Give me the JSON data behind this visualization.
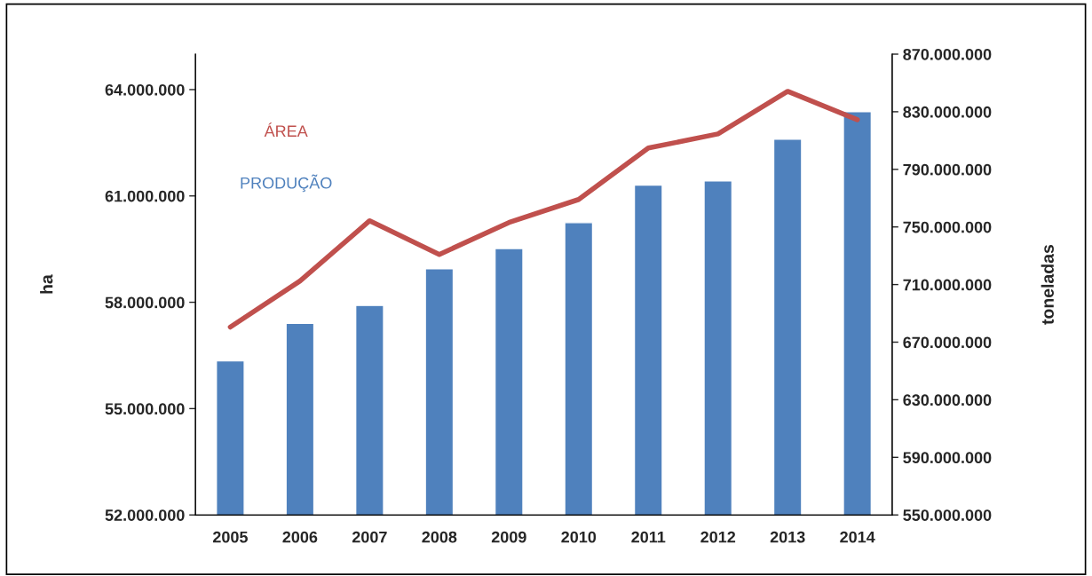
{
  "chart_data": {
    "type": "bar",
    "categories": [
      "2005",
      "2006",
      "2007",
      "2008",
      "2009",
      "2010",
      "2011",
      "2012",
      "2013",
      "2014"
    ],
    "series": [
      {
        "name": "PRODUÇÃO",
        "axis": "y2",
        "color": "#4f81bd",
        "values": [
          657000000,
          683000000,
          695500000,
          721000000,
          735000000,
          753000000,
          779000000,
          782000000,
          811000000,
          830000000
        ]
      },
      {
        "name": "ÁREA",
        "type": "line",
        "color": "#c0504d",
        "values": [
          57300000,
          58600000,
          60300000,
          59350000,
          60250000,
          60900000,
          62350000,
          62750000,
          63950000,
          63150000
        ]
      }
    ],
    "ylabel": "ha",
    "y2label": "toneladas",
    "ylim": [
      52000000,
      65000000
    ],
    "yticks": [
      {
        "value": 52000000,
        "label": "52.000.000"
      },
      {
        "value": 55000000,
        "label": "55.000.000"
      },
      {
        "value": 58000000,
        "label": "58.000.000"
      },
      {
        "value": 61000000,
        "label": "61.000.000"
      },
      {
        "value": 64000000,
        "label": "64.000.000"
      }
    ],
    "y2lim": [
      550000000,
      870000000
    ],
    "y2ticks": [
      {
        "value": 550000000,
        "label": "550.000.000"
      },
      {
        "value": 590000000,
        "label": "590.000.000"
      },
      {
        "value": 630000000,
        "label": "630.000.000"
      },
      {
        "value": 670000000,
        "label": "670.000.000"
      },
      {
        "value": 710000000,
        "label": "710.000.000"
      },
      {
        "value": 750000000,
        "label": "750.000.000"
      },
      {
        "value": 790000000,
        "label": "790.000.000"
      },
      {
        "value": 830000000,
        "label": "830.000.000"
      },
      {
        "value": 870000000,
        "label": "870.000.000"
      }
    ],
    "legend": "top left",
    "grid": false
  }
}
